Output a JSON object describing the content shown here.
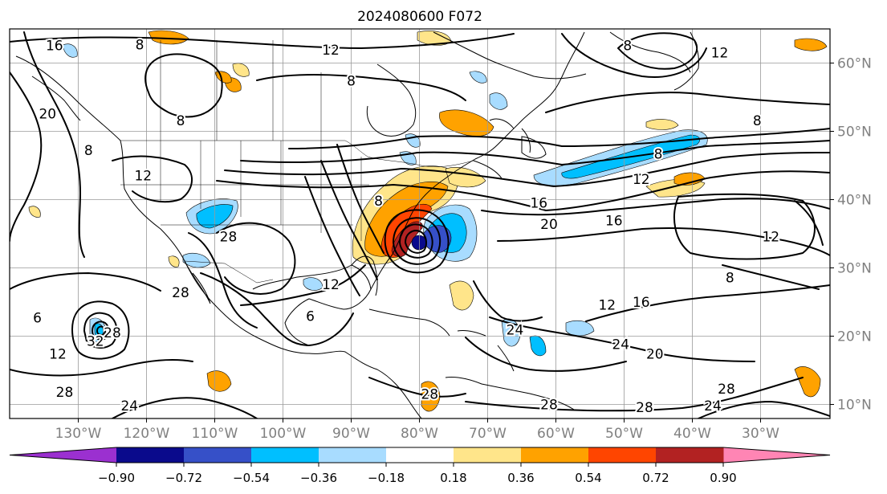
{
  "title": "2024080600 F072",
  "map": {
    "lon_ticks": [
      "130°W",
      "120°W",
      "110°W",
      "100°W",
      "90°W",
      "80°W",
      "70°W",
      "60°W",
      "50°W",
      "40°W",
      "30°W"
    ],
    "lat_ticks": [
      "60°N",
      "50°N",
      "40°N",
      "30°N",
      "20°N",
      "10°N"
    ],
    "contour_labels": [
      {
        "text": "16",
        "lon": -133.5,
        "lat": 62.5
      },
      {
        "text": "8",
        "lon": -121,
        "lat": 62.6
      },
      {
        "text": "12",
        "lon": -93,
        "lat": 61.8
      },
      {
        "text": "8",
        "lon": -90,
        "lat": 57.3
      },
      {
        "text": "8",
        "lon": -49.5,
        "lat": 62.5
      },
      {
        "text": "12",
        "lon": -36,
        "lat": 61.4
      },
      {
        "text": "20",
        "lon": -134.5,
        "lat": 52.5
      },
      {
        "text": "8",
        "lon": -115,
        "lat": 51.5
      },
      {
        "text": "8",
        "lon": -128.5,
        "lat": 47.1
      },
      {
        "text": "8",
        "lon": -30.5,
        "lat": 51.5
      },
      {
        "text": "12",
        "lon": -120.5,
        "lat": 43.4
      },
      {
        "text": "8",
        "lon": -45,
        "lat": 46.6
      },
      {
        "text": "12",
        "lon": -47.5,
        "lat": 42.9
      },
      {
        "text": "16",
        "lon": -62.5,
        "lat": 39.4
      },
      {
        "text": "8",
        "lon": -86,
        "lat": 39.7
      },
      {
        "text": "20",
        "lon": -61,
        "lat": 36.3
      },
      {
        "text": "16",
        "lon": -51.5,
        "lat": 36.8
      },
      {
        "text": "28",
        "lon": -108,
        "lat": 34.5
      },
      {
        "text": "12",
        "lon": -28.5,
        "lat": 34.5
      },
      {
        "text": "8",
        "lon": -34.5,
        "lat": 28.5
      },
      {
        "text": "12",
        "lon": -93,
        "lat": 27.5
      },
      {
        "text": "28",
        "lon": -115,
        "lat": 26.3
      },
      {
        "text": "16",
        "lon": -47.5,
        "lat": 24.9
      },
      {
        "text": "6",
        "lon": -136,
        "lat": 22.6
      },
      {
        "text": "6",
        "lon": -96,
        "lat": 22.8
      },
      {
        "text": "12",
        "lon": -52.5,
        "lat": 24.5
      },
      {
        "text": "32",
        "lon": -127.5,
        "lat": 19.2
      },
      {
        "text": "28",
        "lon": -125,
        "lat": 20.4
      },
      {
        "text": "24",
        "lon": -66,
        "lat": 20.8
      },
      {
        "text": "24",
        "lon": -50.5,
        "lat": 18.7
      },
      {
        "text": "12",
        "lon": -133,
        "lat": 17.3
      },
      {
        "text": "20",
        "lon": -45.5,
        "lat": 17.3
      },
      {
        "text": "28",
        "lon": -132,
        "lat": 11.7
      },
      {
        "text": "28",
        "lon": -78.5,
        "lat": 11.4
      },
      {
        "text": "28",
        "lon": -61,
        "lat": 9.9
      },
      {
        "text": "28",
        "lon": -47,
        "lat": 9.5
      },
      {
        "text": "24",
        "lon": -122.5,
        "lat": 9.7
      },
      {
        "text": "28",
        "lon": -35,
        "lat": 12.2
      },
      {
        "text": "24",
        "lon": -37,
        "lat": 9.7
      }
    ]
  },
  "colorbar": {
    "ticks": [
      "−0.90",
      "−0.72",
      "−0.54",
      "−0.36",
      "−0.18",
      "0.18",
      "0.36",
      "0.54",
      "0.72",
      "0.90"
    ],
    "colors": [
      "#9b30d0",
      "#0a0a8c",
      "#3650c8",
      "#00bfff",
      "#a8dcff",
      "#ffffff",
      "#ffe58a",
      "#ffa200",
      "#ff4500",
      "#b22222",
      "#ff85b4"
    ]
  }
}
